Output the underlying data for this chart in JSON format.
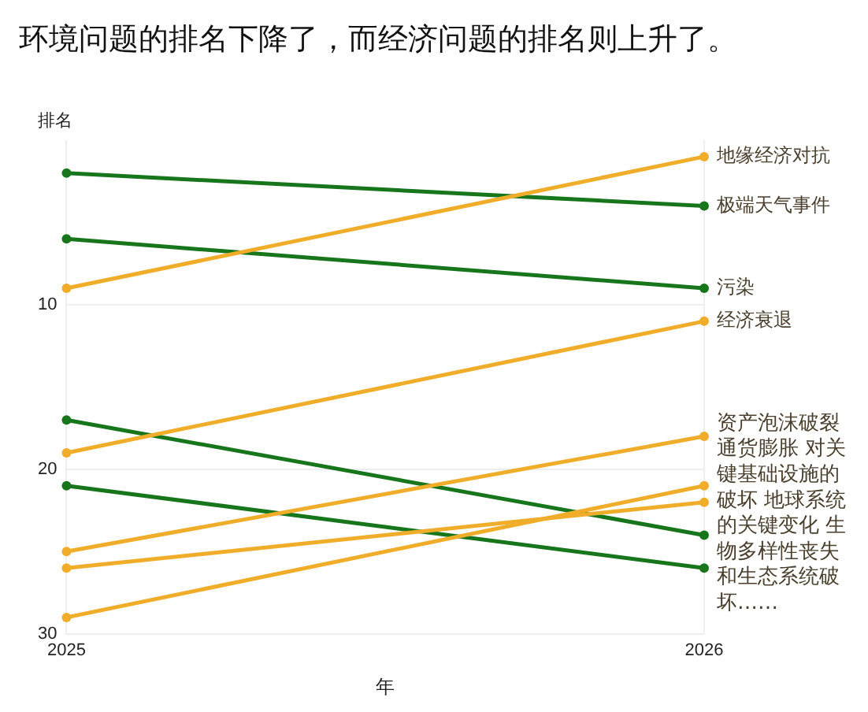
{
  "chart_data": {
    "type": "line",
    "title": "环境问题的排名下降了，而经济问题的排名则上升了。",
    "xlabel": "年",
    "ylabel": "排名",
    "categories": [
      "2025",
      "2026"
    ],
    "ylim": [
      30,
      0
    ],
    "yticks": [
      10,
      20,
      30
    ],
    "grid": true,
    "legend": false,
    "marker": "circle",
    "series": [
      {
        "name": "地缘经济对抗",
        "color": "#f0ad2a",
        "values": [
          9,
          1
        ]
      },
      {
        "name": "极端天气事件",
        "color": "#17761c",
        "values": [
          2,
          4
        ]
      },
      {
        "name": "污染",
        "color": "#17761c",
        "values": [
          6,
          9
        ]
      },
      {
        "name": "经济衰退",
        "color": "#f0ad2a",
        "values": [
          19,
          11
        ]
      },
      {
        "color": "#f0ad2a",
        "values": [
          25,
          18
        ]
      },
      {
        "color": "#f0ad2a",
        "values": [
          29,
          21
        ]
      },
      {
        "color": "#f0ad2a",
        "values": [
          26,
          22
        ]
      },
      {
        "color": "#17761c",
        "values": [
          17,
          24
        ]
      },
      {
        "color": "#17761c",
        "values": [
          21,
          26
        ]
      }
    ],
    "annotations": [
      "资产泡沫破裂通货膨胀 对关键基础设施的破坏 地球系统的关键变化 生物多样性丧失和生态系统破坏……"
    ]
  }
}
